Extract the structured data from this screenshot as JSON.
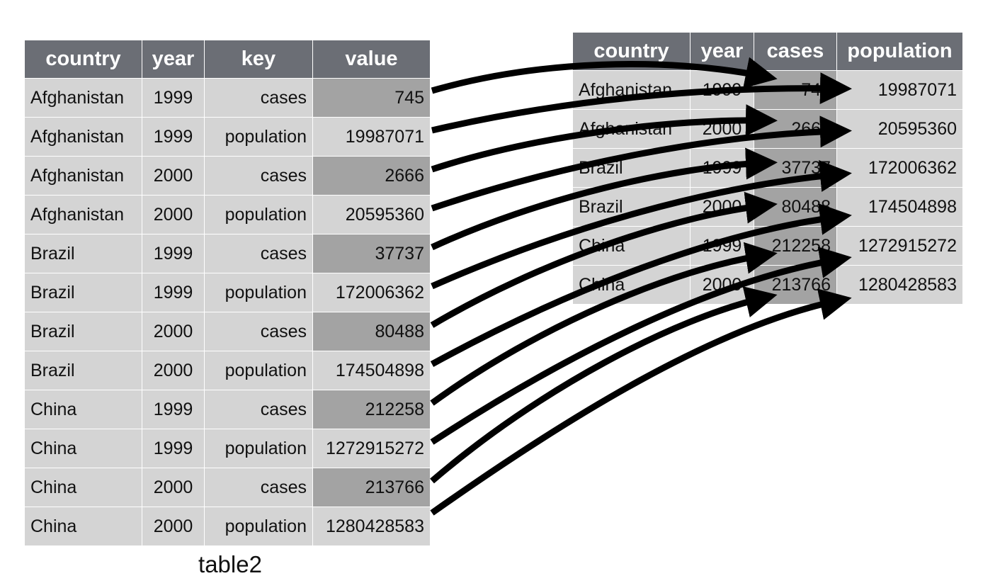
{
  "left_table": {
    "headers": [
      "country",
      "year",
      "key",
      "value"
    ],
    "rows": [
      [
        "Afghanistan",
        "1999",
        "cases",
        "745"
      ],
      [
        "Afghanistan",
        "1999",
        "population",
        "19987071"
      ],
      [
        "Afghanistan",
        "2000",
        "cases",
        "2666"
      ],
      [
        "Afghanistan",
        "2000",
        "population",
        "20595360"
      ],
      [
        "Brazil",
        "1999",
        "cases",
        "37737"
      ],
      [
        "Brazil",
        "1999",
        "population",
        "172006362"
      ],
      [
        "Brazil",
        "2000",
        "cases",
        "80488"
      ],
      [
        "Brazil",
        "2000",
        "population",
        "174504898"
      ],
      [
        "China",
        "1999",
        "cases",
        "212258"
      ],
      [
        "China",
        "1999",
        "population",
        "1272915272"
      ],
      [
        "China",
        "2000",
        "cases",
        "213766"
      ],
      [
        "China",
        "2000",
        "population",
        "1280428583"
      ]
    ],
    "caption": "table2"
  },
  "right_table": {
    "headers": [
      "country",
      "year",
      "cases",
      "population"
    ],
    "rows": [
      [
        "Afghanistan",
        "1999",
        "745",
        "19987071"
      ],
      [
        "Afghanistan",
        "2000",
        "2666",
        "20595360"
      ],
      [
        "Brazil",
        "1999",
        "37737",
        "172006362"
      ],
      [
        "Brazil",
        "2000",
        "80488",
        "174504898"
      ],
      [
        "China",
        "1999",
        "212258",
        "1272915272"
      ],
      [
        "China",
        "2000",
        "213766",
        "1280428583"
      ]
    ]
  },
  "colors": {
    "header_bg": "#6b6e75",
    "cell_bg": "#d4d4d4",
    "highlight_bg": "#a3a3a3",
    "arrow": "#000000"
  }
}
